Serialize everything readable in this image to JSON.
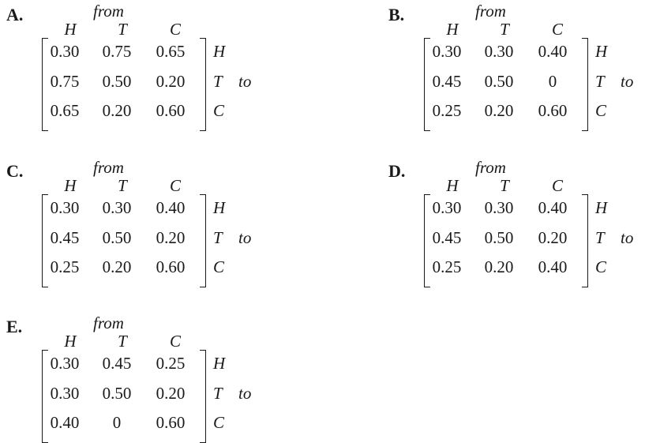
{
  "common": {
    "from_label": "from",
    "to_label": "to",
    "col_headers": [
      "H",
      "T",
      "C"
    ],
    "row_headers": [
      "H",
      "T",
      "C"
    ]
  },
  "options": [
    {
      "letter": "A.",
      "rows": [
        [
          "0.30",
          "0.75",
          "0.65"
        ],
        [
          "0.75",
          "0.50",
          "0.20"
        ],
        [
          "0.65",
          "0.20",
          "0.60"
        ]
      ]
    },
    {
      "letter": "B.",
      "rows": [
        [
          "0.30",
          "0.30",
          "0.40"
        ],
        [
          "0.45",
          "0.50",
          "0"
        ],
        [
          "0.25",
          "0.20",
          "0.60"
        ]
      ]
    },
    {
      "letter": "C.",
      "rows": [
        [
          "0.30",
          "0.30",
          "0.40"
        ],
        [
          "0.45",
          "0.50",
          "0.20"
        ],
        [
          "0.25",
          "0.20",
          "0.60"
        ]
      ]
    },
    {
      "letter": "D.",
      "rows": [
        [
          "0.30",
          "0.30",
          "0.40"
        ],
        [
          "0.45",
          "0.50",
          "0.20"
        ],
        [
          "0.25",
          "0.20",
          "0.40"
        ]
      ]
    },
    {
      "letter": "E.",
      "rows": [
        [
          "0.30",
          "0.45",
          "0.25"
        ],
        [
          "0.30",
          "0.50",
          "0.20"
        ],
        [
          "0.40",
          "0",
          "0.60"
        ]
      ]
    }
  ]
}
